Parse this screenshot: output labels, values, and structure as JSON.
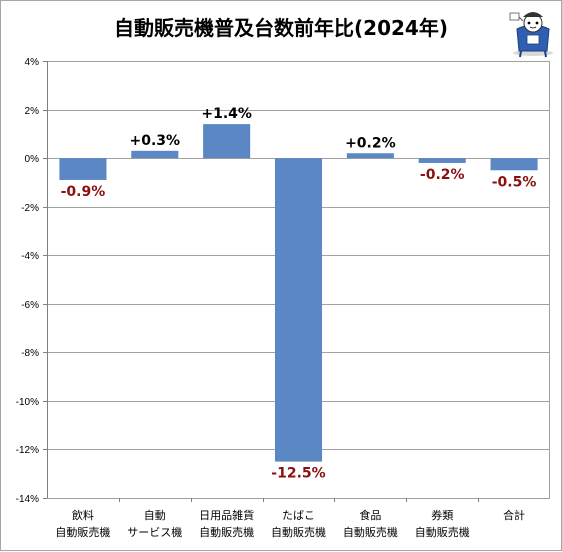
{
  "chart_data": {
    "type": "bar",
    "title": "自動販売機普及台数前年比(2024年)",
    "categories": [
      [
        "飲料",
        "自動販売機"
      ],
      [
        "自動",
        "サービス機"
      ],
      [
        "日用品雑貨",
        "自動販売機"
      ],
      [
        "たばこ",
        "自動販売機"
      ],
      [
        "食品",
        "自動販売機"
      ],
      [
        "券類",
        "自動販売機"
      ],
      [
        "合計"
      ]
    ],
    "values": [
      -0.9,
      0.3,
      1.4,
      -12.5,
      0.2,
      -0.2,
      -0.5
    ],
    "data_labels": [
      "-0.9%",
      "+0.3%",
      "+1.4%",
      "-12.5%",
      "+0.2%",
      "-0.2%",
      "-0.5%"
    ],
    "ylim": [
      -14,
      4
    ],
    "yticks": [
      4,
      2,
      0,
      -2,
      -4,
      -6,
      -8,
      -10,
      -12,
      -14
    ],
    "ytick_labels": [
      "4%",
      "2%",
      "0%",
      "-2%",
      "-4%",
      "-6%",
      "-8%",
      "-10%",
      "-12%",
      "-14%"
    ],
    "grid": true,
    "colors": {
      "bar": "#5b87c5",
      "positive_label": "#000000",
      "negative_label": "#8b1010",
      "grid": "#a0a0a0"
    }
  }
}
